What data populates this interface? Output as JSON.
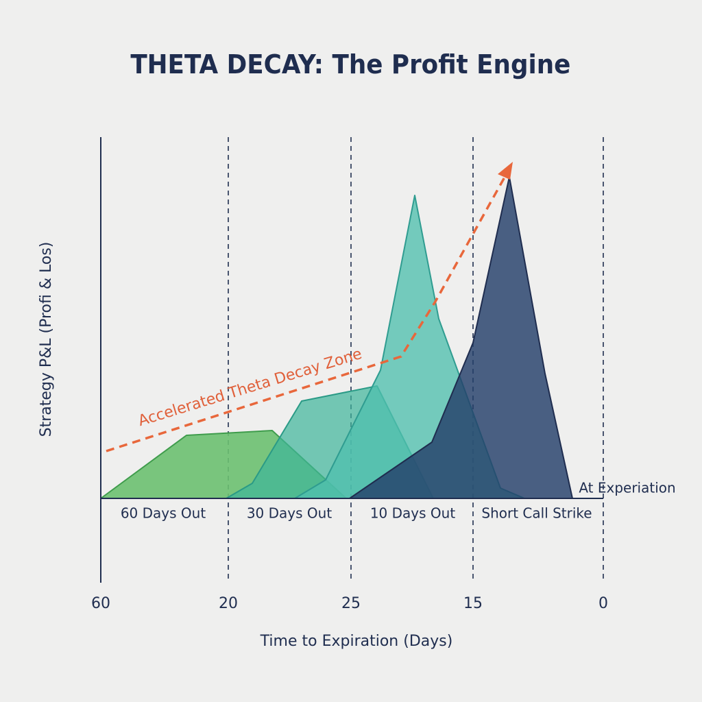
{
  "title": "THETA DECAY: The Profit Engine",
  "y_axis_label": "Strategy P&L (Profi & Los)",
  "x_axis_label": "Time to Expiration (Days)",
  "x_tick_labels": [
    "60",
    "20",
    "25",
    "15",
    "0"
  ],
  "zone_labels": [
    "60 Days Out",
    "30 Days Out",
    "10 Days Out",
    "Short Call Strike"
  ],
  "annotations": {
    "trend": "Accelerated Theta Decay Zone",
    "expiration": "At Experiation"
  }
}
